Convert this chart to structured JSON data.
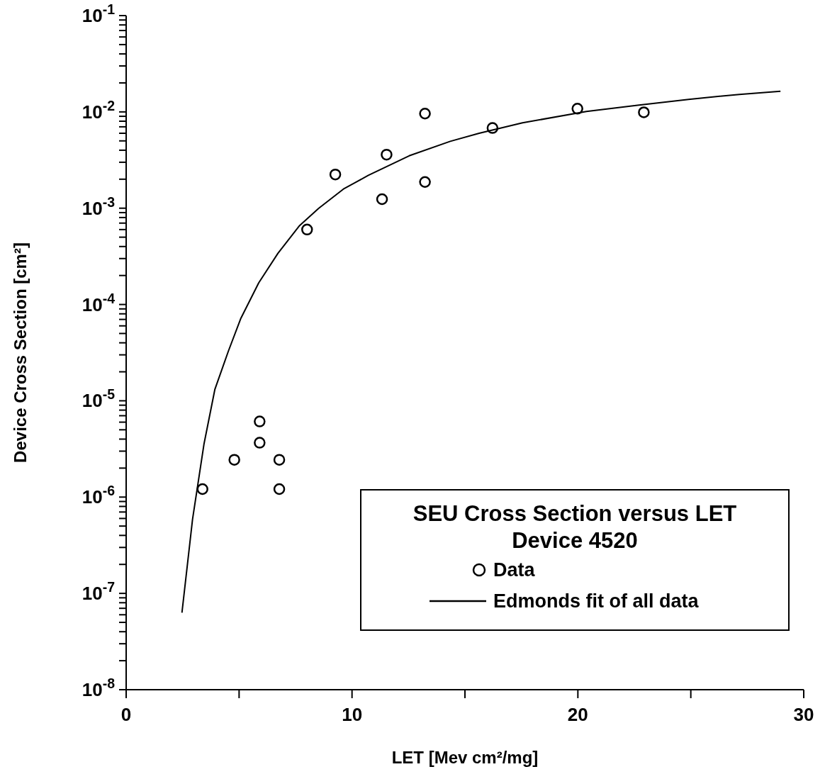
{
  "chart_data": {
    "type": "scatter",
    "xlabel": "LET [Mev cm²/mg]",
    "ylabel": "Device Cross Section [cm²]",
    "legend_title": "SEU Cross Section versus LET\nDevice 4520",
    "legend": "bottom right",
    "grid": false,
    "log": "y",
    "xlim": [
      0,
      30
    ],
    "xticks": [
      0,
      {
        "value": 5,
        "label": null
      },
      10,
      {
        "value": 15,
        "label": null
      },
      20,
      {
        "value": 25,
        "label": null
      },
      30
    ],
    "ylim": [
      1e-08,
      0.1
    ],
    "yticks": [
      {
        "value": 1e-08,
        "label": "10$^{-8}$"
      },
      {
        "value": 2e-08,
        "label": null
      },
      {
        "value": 3e-08,
        "label": null
      },
      {
        "value": 4e-08,
        "label": null
      },
      {
        "value": 5e-08,
        "label": null
      },
      {
        "value": 6e-08,
        "label": null
      },
      {
        "value": 7e-08,
        "label": null
      },
      {
        "value": 8e-08,
        "label": null
      },
      {
        "value": 9e-08,
        "label": null
      },
      {
        "value": 1e-07,
        "label": "10$^{-7}$"
      },
      {
        "value": 2e-07,
        "label": null
      },
      {
        "value": 3e-07,
        "label": null
      },
      {
        "value": 4e-07,
        "label": null
      },
      {
        "value": 5e-07,
        "label": null
      },
      {
        "value": 6e-07,
        "label": null
      },
      {
        "value": 7e-07,
        "label": null
      },
      {
        "value": 8e-07,
        "label": null
      },
      {
        "value": 9e-07,
        "label": null
      },
      {
        "value": 1e-06,
        "label": "10$^{-6}$"
      },
      {
        "value": 2e-06,
        "label": null
      },
      {
        "value": 3e-06,
        "label": null
      },
      {
        "value": 4e-06,
        "label": null
      },
      {
        "value": 5e-06,
        "label": null
      },
      {
        "value": 6e-06,
        "label": null
      },
      {
        "value": 7e-06,
        "label": null
      },
      {
        "value": 8e-06,
        "label": null
      },
      {
        "value": 9e-06,
        "label": null
      },
      {
        "value": 1e-05,
        "label": "10$^{-5}$"
      },
      {
        "value": 2e-05,
        "label": null
      },
      {
        "value": 3e-05,
        "label": null
      },
      {
        "value": 4e-05,
        "label": null
      },
      {
        "value": 5e-05,
        "label": null
      },
      {
        "value": 6e-05,
        "label": null
      },
      {
        "value": 7e-05,
        "label": null
      },
      {
        "value": 8e-05,
        "label": null
      },
      {
        "value": 9e-05,
        "label": null
      },
      {
        "value": 0.0001,
        "label": "10$^{-4}$"
      },
      {
        "value": 0.0002,
        "label": null
      },
      {
        "value": 0.0003,
        "label": null
      },
      {
        "value": 0.0004,
        "label": null
      },
      {
        "value": 0.0005,
        "label": null
      },
      {
        "value": 0.0006,
        "label": null
      },
      {
        "value": 0.0007,
        "label": null
      },
      {
        "value": 0.0008,
        "label": null
      },
      {
        "value": 0.0009,
        "label": null
      },
      {
        "value": 0.001,
        "label": "10$^{-3}$"
      },
      {
        "value": 0.002,
        "label": null
      },
      {
        "value": 0.003,
        "label": null
      },
      {
        "value": 0.004,
        "label": null
      },
      {
        "value": 0.005,
        "label": null
      },
      {
        "value": 0.006,
        "label": null
      },
      {
        "value": 0.007,
        "label": null
      },
      {
        "value": 0.008,
        "label": null
      },
      {
        "value": 0.009,
        "label": null
      },
      {
        "value": 0.01,
        "label": "10$^{-2}$"
      },
      {
        "value": 0.02,
        "label": null
      },
      {
        "value": 0.03,
        "label": null
      },
      {
        "value": 0.04,
        "label": null
      },
      {
        "value": 0.05,
        "label": null
      },
      {
        "value": 0.06,
        "label": null
      },
      {
        "value": 0.07,
        "label": null
      },
      {
        "value": 0.08,
        "label": null
      },
      {
        "value": 0.09,
        "label": null
      },
      {
        "value": 0.1,
        "label": "10$^{-1}$"
      }
    ],
    "series": [
      {
        "name": "Data",
        "marker": "circle",
        "color": "#000000",
        "x": [
          3.38,
          4.79,
          5.91,
          5.91,
          6.78,
          6.78,
          8.01,
          9.26,
          11.33,
          11.53,
          13.23,
          13.23,
          16.22,
          19.98,
          22.92
        ],
        "values": [
          1.21e-06,
          2.44e-06,
          6.1e-06,
          3.67e-06,
          2.44e-06,
          1.21e-06,
          0.0006,
          0.00224,
          0.00124,
          0.0036,
          0.0096,
          0.00187,
          0.0068,
          0.0108,
          0.0099
        ]
      },
      {
        "name": "Edmonds fit of all data",
        "type": "line",
        "marker": "none",
        "line_style": "solid",
        "color": "#000000",
        "x": [
          2.47,
          2.94,
          3.45,
          3.93,
          4.53,
          5.08,
          5.87,
          6.72,
          7.68,
          8.53,
          9.62,
          10.72,
          12.53,
          14.35,
          15.63,
          17.55,
          20.38,
          22.64,
          24.9,
          27.15,
          28.97
        ],
        "values": [
          6.3e-08,
          5.9e-07,
          3.6e-06,
          1.32e-05,
          3.3e-05,
          7.2e-05,
          0.000168,
          0.00034,
          0.00066,
          0.001,
          0.00158,
          0.00219,
          0.0035,
          0.00495,
          0.006,
          0.0077,
          0.0101,
          0.0117,
          0.0135,
          0.0152,
          0.0164
        ]
      }
    ]
  }
}
